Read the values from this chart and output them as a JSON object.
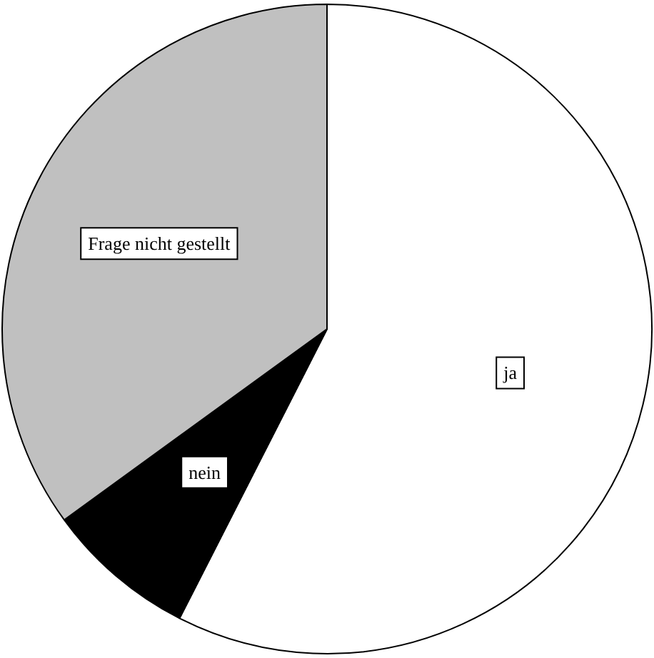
{
  "chart_data": {
    "type": "pie",
    "categories": [
      "ja",
      "nein",
      "Frage nicht gestellt"
    ],
    "values": [
      57.5,
      7.5,
      35
    ],
    "colors": [
      "#ffffff",
      "#000000",
      "#c0c0c0"
    ],
    "legend": false
  }
}
